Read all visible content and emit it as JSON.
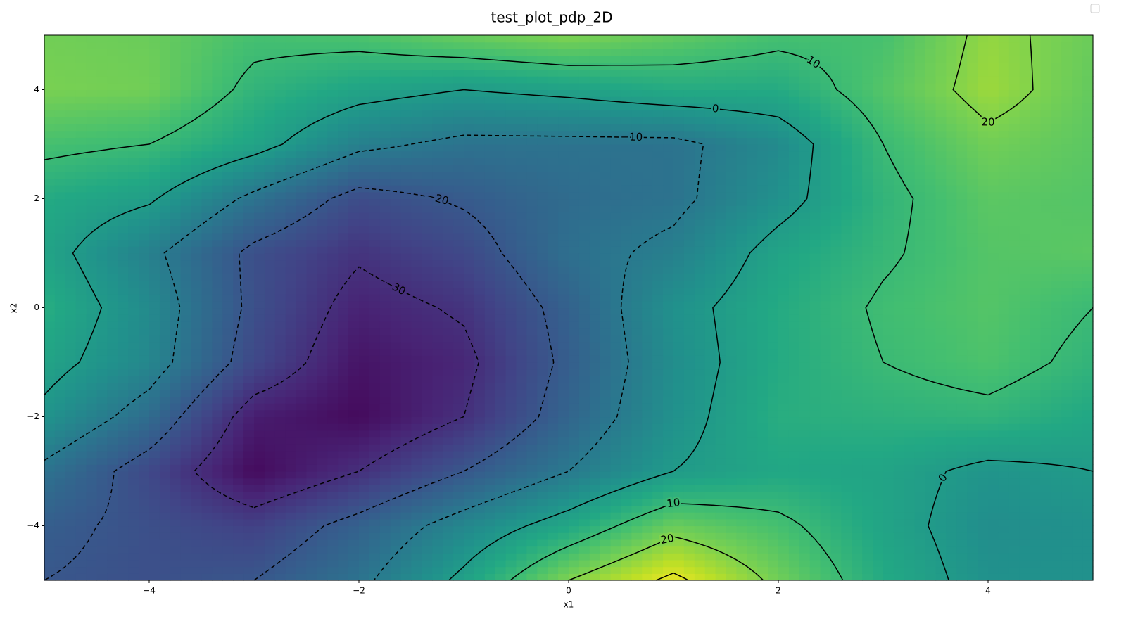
{
  "chart_data": {
    "type": "contour",
    "title": "test_plot_pdp_2D",
    "x_label": "x1",
    "y_label": "x2",
    "x": [
      -5,
      -4,
      -3,
      -2,
      -1,
      0,
      1,
      2,
      3,
      4,
      5
    ],
    "y": [
      -5,
      -4,
      -3,
      -2,
      -1,
      0,
      1,
      2,
      3,
      4,
      5
    ],
    "z": [
      [
        -20,
        -22,
        -20,
        -12,
        2,
        20,
        32,
        18,
        5,
        -3,
        -3
      ],
      [
        -18,
        -22,
        -26,
        -17,
        -6,
        4,
        17,
        12,
        3,
        -4,
        -3
      ],
      [
        -12,
        -24,
        -38,
        -30,
        -20,
        -10,
        0,
        4,
        3,
        -2,
        0
      ],
      [
        -2,
        -14,
        -34,
        -38,
        -30,
        -16,
        -3,
        6,
        7,
        8,
        4
      ],
      [
        3,
        -6,
        -24,
        -36,
        -32,
        -18,
        -4,
        5,
        10,
        13,
        8
      ],
      [
        6,
        -5,
        -22,
        -33,
        -29,
        -17,
        -3,
        5,
        11,
        14,
        10
      ],
      [
        3,
        -8,
        -22,
        -29,
        -24,
        -13,
        -8,
        3,
        9,
        14,
        15
      ],
      [
        5,
        1,
        -12,
        -23,
        -19,
        -14,
        -12,
        -3,
        8,
        15,
        14
      ],
      [
        12,
        10,
        3,
        -8,
        -12,
        -12,
        -12,
        -5,
        10,
        18,
        15
      ],
      [
        19,
        18,
        8,
        3,
        0,
        2,
        5,
        5,
        14,
        23,
        16
      ],
      [
        18,
        17,
        12,
        13,
        17,
        20,
        16,
        12,
        12,
        22,
        17
      ]
    ],
    "cmap": "viridis",
    "clim": [
      -40,
      34
    ],
    "levels": [
      {
        "value": -30,
        "label": "−30"
      },
      {
        "value": -20,
        "label": "−20"
      },
      {
        "value": -10,
        "label": "−10"
      },
      0,
      10,
      20,
      30
    ],
    "contour_color": "#000000",
    "negative_linestyle": "dashed",
    "xlim": [
      -5,
      5
    ],
    "ylim": [
      -5,
      5
    ],
    "xticks": [
      {
        "value": -4,
        "label": "−4"
      },
      {
        "value": -2,
        "label": "−2"
      },
      0,
      2,
      4
    ],
    "yticks": [
      {
        "value": -4,
        "label": "−4"
      },
      {
        "value": -2,
        "label": "−2"
      },
      0,
      2,
      4
    ]
  }
}
